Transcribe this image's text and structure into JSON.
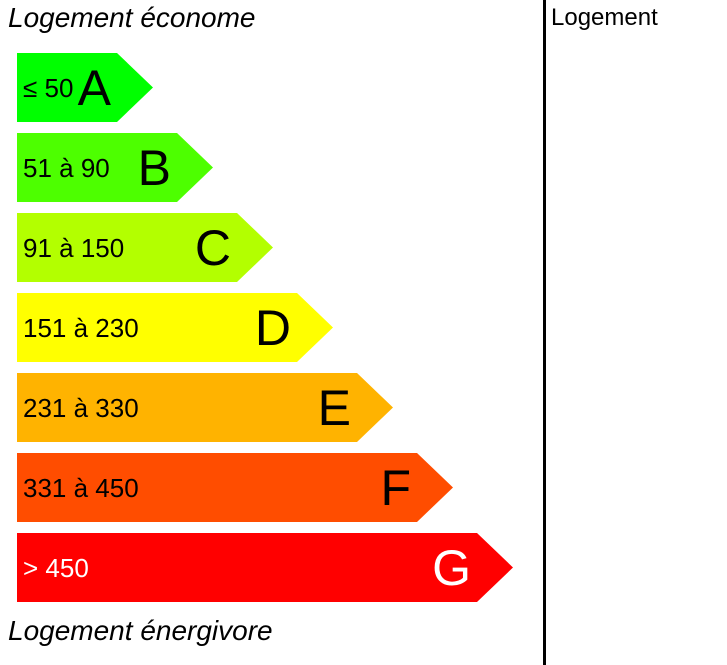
{
  "captions": {
    "top": "Logement économe",
    "bottom": "Logement énergivore"
  },
  "column_header": "Logement",
  "bands": [
    {
      "letter": "A",
      "range": "≤ 50",
      "color": "#00ff00",
      "text_color": "#000000"
    },
    {
      "letter": "B",
      "range": "51 à 90",
      "color": "#4dff00",
      "text_color": "#000000"
    },
    {
      "letter": "C",
      "range": "91 à 150",
      "color": "#b3ff00",
      "text_color": "#000000"
    },
    {
      "letter": "D",
      "range": "151 à 230",
      "color": "#ffff00",
      "text_color": "#000000"
    },
    {
      "letter": "E",
      "range": "231 à 330",
      "color": "#ffb300",
      "text_color": "#000000"
    },
    {
      "letter": "F",
      "range": "331 à 450",
      "color": "#ff4d00",
      "text_color": "#000000"
    },
    {
      "letter": "G",
      "range": "> 450",
      "color": "#ff0000",
      "text_color": "#ffffff"
    }
  ]
}
